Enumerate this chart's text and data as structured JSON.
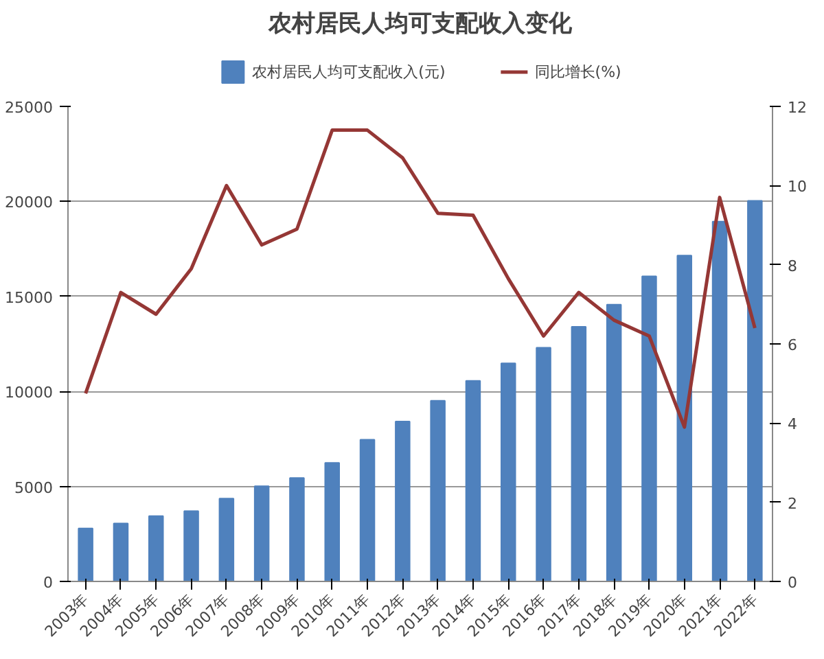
{
  "chart_data": {
    "type": "bar",
    "title": "农村居民人均可支配收入变化",
    "categories": [
      "2003年",
      "2004年",
      "2005年",
      "2006年",
      "2007年",
      "2008年",
      "2009年",
      "2010年",
      "2011年",
      "2012年",
      "2013年",
      "2014年",
      "2015年",
      "2016年",
      "2017年",
      "2018年",
      "2019年",
      "2020年",
      "2021年",
      "2022年"
    ],
    "series": [
      {
        "name": "农村居民人均可支配收入(元)",
        "color": "#4f81bd",
        "values": [
          2790,
          3050,
          3440,
          3700,
          4360,
          5010,
          5450,
          6240,
          7460,
          8420,
          9510,
          10560,
          11480,
          12300,
          13400,
          14570,
          16060,
          17150,
          18940,
          20030
        ]
      },
      {
        "name": "同比增长(%)",
        "type": "line",
        "axis": "y2",
        "color": "#953735",
        "values": [
          4.75,
          7.3,
          6.75,
          7.9,
          10.0,
          8.5,
          8.9,
          11.4,
          11.4,
          10.7,
          9.3,
          9.25,
          7.65,
          6.2,
          7.3,
          6.6,
          6.2,
          3.9,
          9.7,
          6.4
        ]
      }
    ],
    "ylim": [
      0,
      25000
    ],
    "yticks": [
      0,
      5000,
      10000,
      15000,
      20000,
      25000
    ],
    "y2lim": [
      0,
      12
    ],
    "y2ticks": [
      0,
      2,
      4,
      6,
      8,
      10,
      12
    ],
    "grid": "y",
    "legend": "top"
  }
}
